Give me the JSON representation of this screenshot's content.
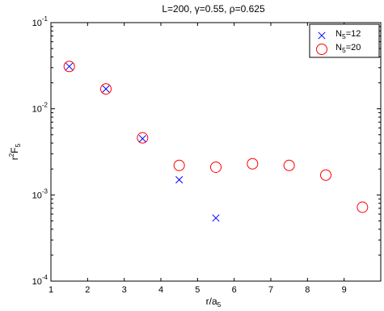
{
  "chart_data": {
    "type": "scatter",
    "title": "L=200, γ=0.55, ρ=0.625",
    "xlabel": {
      "main": "r/a",
      "sub": "5"
    },
    "ylabel": {
      "pre": "r",
      "sup": "2",
      "main": "F",
      "sub": "5"
    },
    "xlim": [
      1,
      10
    ],
    "ylim": [
      0.0001,
      0.1
    ],
    "yscale": "log",
    "xticks": [
      1,
      2,
      3,
      4,
      5,
      6,
      7,
      8,
      9
    ],
    "yticks": [
      {
        "value": 0.0001,
        "base": "10",
        "exp": "-4"
      },
      {
        "value": 0.001,
        "base": "10",
        "exp": "-3"
      },
      {
        "value": 0.01,
        "base": "10",
        "exp": "-2"
      },
      {
        "value": 0.1,
        "base": "10",
        "exp": "-1"
      }
    ],
    "grid": false,
    "legend_position": "top-right",
    "series": [
      {
        "name": {
          "main": "N",
          "sub": "5",
          "rest": "=12"
        },
        "marker": "x",
        "color": "#0000ff",
        "x": [
          1.5,
          2.5,
          3.5,
          4.5,
          5.5
        ],
        "y": [
          0.031,
          0.017,
          0.0045,
          0.0015,
          0.00054
        ]
      },
      {
        "name": {
          "main": "N",
          "sub": "5",
          "rest": "=20"
        },
        "marker": "circle",
        "color": "#ff0000",
        "x": [
          1.5,
          2.5,
          3.5,
          4.5,
          5.5,
          6.5,
          7.5,
          8.5,
          9.5
        ],
        "y": [
          0.031,
          0.017,
          0.0046,
          0.0022,
          0.0021,
          0.0023,
          0.0022,
          0.0017,
          0.00072
        ]
      }
    ]
  }
}
